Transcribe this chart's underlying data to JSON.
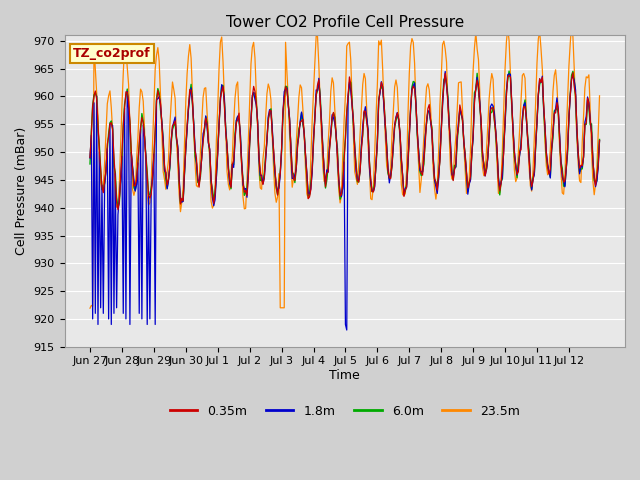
{
  "title": "Tower CO2 Profile Cell Pressure",
  "xlabel": "Time",
  "ylabel": "Cell Pressure (mBar)",
  "ylim": [
    915,
    971
  ],
  "yticks": [
    915,
    920,
    925,
    930,
    935,
    940,
    945,
    950,
    955,
    960,
    965,
    970
  ],
  "xtick_labels": [
    "Jun 27",
    "Jun 28",
    "Jun 29",
    "Jun 30",
    "Jul 1",
    "Jul 2",
    "Jul 3",
    "Jul 4",
    "Jul 5",
    "Jul 6",
    "Jul 7",
    "Jul 8",
    "Jul 9",
    "Jul 10",
    "Jul 11",
    "Jul 12"
  ],
  "legend_labels": [
    "0.35m",
    "1.8m",
    "6.0m",
    "23.5m"
  ],
  "legend_colors": [
    "#cc0000",
    "#0000cc",
    "#00aa00",
    "#ff8800"
  ],
  "line_colors": [
    "#cc0000",
    "#0000cc",
    "#00aa00",
    "#ff8800"
  ],
  "annotation_text": "TZ_co2prof",
  "annotation_color": "#aa0000",
  "annotation_bg": "#ffffcc",
  "annotation_border": "#cc8800",
  "fig_bg": "#d0d0d0",
  "plot_bg": "#e8e8e8",
  "grid_color": "#ffffff",
  "title_fontsize": 11,
  "axis_fontsize": 9,
  "tick_fontsize": 8,
  "legend_fontsize": 9
}
